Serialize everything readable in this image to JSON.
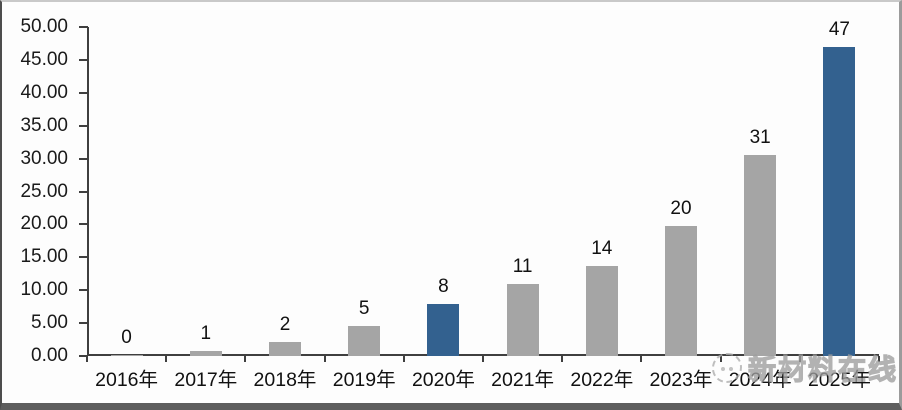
{
  "chart_data": {
    "type": "bar",
    "title": "",
    "xlabel": "",
    "ylabel": "",
    "categories": [
      "2016年",
      "2017年",
      "2018年",
      "2019年",
      "2020年",
      "2021年",
      "2022年",
      "2023年",
      "2024年",
      "2025年"
    ],
    "values": [
      0,
      1,
      2,
      5,
      8,
      11,
      14,
      20,
      31,
      47
    ],
    "data_labels": [
      "0",
      "1",
      "2",
      "5",
      "8",
      "11",
      "14",
      "20",
      "31",
      "47"
    ],
    "bar_heights_rendered": [
      0.2,
      0.8,
      2.1,
      4.6,
      7.9,
      10.9,
      13.7,
      19.8,
      30.5,
      47
    ],
    "highlight_indices": [
      4,
      9
    ],
    "colors": {
      "bar_default": "#A5A5A5",
      "bar_highlight": "#33618F",
      "axis": "#3F3F3F",
      "text": "#1A1A1A"
    },
    "y_axis": {
      "min": 0,
      "max": 50,
      "tick_step": 5,
      "tick_labels": [
        "50.00",
        "45.00",
        "40.00",
        "35.00",
        "30.00",
        "25.00",
        "20.00",
        "15.00",
        "10.00",
        "5.00",
        "0.00"
      ]
    },
    "grid": false,
    "legend": "none"
  },
  "watermark": {
    "text": "新材料在线",
    "logo_icon": "mascot-circle-logo"
  }
}
